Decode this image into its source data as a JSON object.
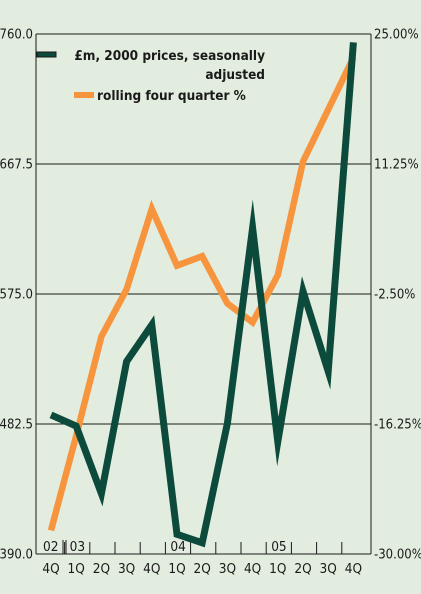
{
  "chart_data": {
    "type": "line",
    "x": [
      "4Q",
      "1Q",
      "2Q",
      "3Q",
      "4Q",
      "1Q",
      "2Q",
      "3Q",
      "4Q",
      "1Q",
      "2Q",
      "3Q",
      "4Q"
    ],
    "years": [
      {
        "label": "02",
        "start_index": 0
      },
      {
        "label": "03",
        "start_index": 1
      },
      {
        "label": "04",
        "start_index": 5
      },
      {
        "label": "05",
        "start_index": 9
      }
    ],
    "left_axis": {
      "ylim": [
        390.0,
        760.0
      ],
      "ticks": [
        {
          "value": 760.0,
          "label": "760.0"
        },
        {
          "value": 667.5,
          "label": "667.5"
        },
        {
          "value": 575.0,
          "label": "575.0"
        },
        {
          "value": 482.5,
          "label": "482.5"
        },
        {
          "value": 390.0,
          "label": "390.0"
        }
      ]
    },
    "right_axis": {
      "ylim": [
        -30.0,
        25.0
      ],
      "ticks": [
        {
          "value": 25.0,
          "label": "25.00%"
        },
        {
          "value": 11.25,
          "label": "11.25%"
        },
        {
          "value": -2.5,
          "label": "-2.50%"
        },
        {
          "value": -16.25,
          "label": "-16.25%"
        },
        {
          "value": -30.0,
          "label": "-30.00%"
        }
      ]
    },
    "grid": true,
    "legend_position": "top-right",
    "series": [
      {
        "name": "£m, 2000 prices, seasonally adjusted",
        "axis": "left",
        "color": "#0c4a3c",
        "values": [
          489,
          481,
          433,
          527,
          553,
          404,
          398,
          483,
          622,
          470,
          577,
          520,
          754
        ]
      },
      {
        "name": "rolling four quarter %",
        "axis": "right",
        "color": "#f7953e",
        "values": [
          -27.5,
          -17.5,
          -7.0,
          -2.0,
          6.5,
          0.5,
          1.5,
          -3.5,
          -5.5,
          -0.5,
          11.5,
          17.0,
          22.5
        ]
      }
    ],
    "legend": [
      {
        "lines": [
          "£m, 2000 prices, seasonally",
          "adjusted"
        ],
        "color": "#0c4a3c"
      },
      {
        "lines": [
          "rolling four quarter %"
        ],
        "color": "#f7953e"
      }
    ]
  }
}
